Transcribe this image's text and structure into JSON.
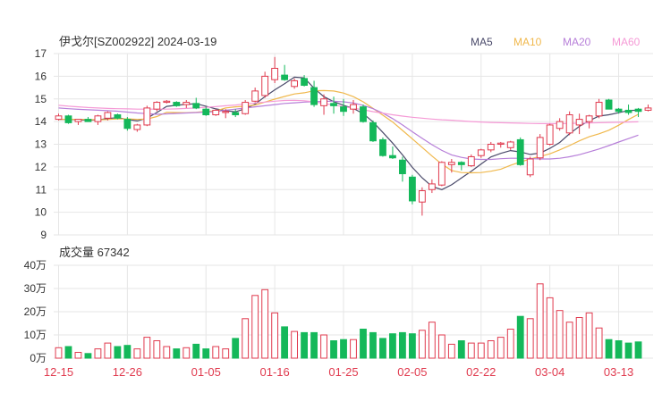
{
  "header": {
    "title": "伊戈尔[SZ002922] 2024-03-19",
    "ma_legend": [
      {
        "label": "MA5",
        "color": "#4a4a6a"
      },
      {
        "label": "MA10",
        "color": "#f0b84c"
      },
      {
        "label": "MA20",
        "color": "#b77fd9"
      },
      {
        "label": "MA60",
        "color": "#f59ad6"
      }
    ]
  },
  "volume_header": {
    "label": "成交量 67342"
  },
  "colors": {
    "up": "#e03a4e",
    "down": "#14b85a",
    "grid": "#e6e6e6",
    "axis_text": "#333333"
  },
  "chart_data": [
    {
      "type": "candlestick",
      "title": "伊戈尔[SZ002922] 2024-03-19",
      "ylim": [
        9,
        17
      ],
      "yticks": [
        "9",
        "10",
        "11",
        "12",
        "13",
        "14",
        "15",
        "16",
        "17"
      ],
      "xticks": [
        {
          "label": "12-15",
          "index": 0
        },
        {
          "label": "12-26",
          "index": 7
        },
        {
          "label": "01-05",
          "index": 15
        },
        {
          "label": "01-16",
          "index": 22
        },
        {
          "label": "01-25",
          "index": 29
        },
        {
          "label": "02-05",
          "index": 36
        },
        {
          "label": "02-22",
          "index": 43
        },
        {
          "label": "03-04",
          "index": 50
        },
        {
          "label": "03-13",
          "index": 57
        }
      ],
      "ohlc": [
        [
          14.1,
          14.35,
          14.05,
          14.25
        ],
        [
          14.25,
          14.3,
          13.9,
          13.95
        ],
        [
          14.0,
          14.1,
          13.85,
          14.1
        ],
        [
          14.1,
          14.2,
          14.0,
          14.0
        ],
        [
          14.0,
          14.3,
          13.85,
          14.25
        ],
        [
          14.15,
          14.45,
          14.05,
          14.4
        ],
        [
          14.3,
          14.35,
          14.1,
          14.15
        ],
        [
          14.1,
          14.2,
          13.6,
          13.7
        ],
        [
          13.65,
          13.9,
          13.55,
          13.85
        ],
        [
          13.85,
          14.7,
          13.8,
          14.6
        ],
        [
          14.55,
          14.9,
          14.45,
          14.85
        ],
        [
          14.85,
          14.95,
          14.8,
          14.9
        ],
        [
          14.85,
          14.9,
          14.65,
          14.7
        ],
        [
          14.75,
          14.95,
          14.6,
          14.85
        ],
        [
          14.8,
          15.05,
          14.55,
          14.6
        ],
        [
          14.55,
          14.65,
          14.25,
          14.3
        ],
        [
          14.3,
          14.55,
          14.25,
          14.5
        ],
        [
          14.4,
          14.55,
          14.15,
          14.45
        ],
        [
          14.4,
          14.55,
          14.2,
          14.3
        ],
        [
          14.35,
          14.95,
          14.3,
          14.85
        ],
        [
          14.9,
          15.5,
          14.85,
          15.35
        ],
        [
          15.15,
          16.2,
          15.05,
          16.0
        ],
        [
          15.85,
          16.85,
          15.7,
          16.35
        ],
        [
          16.05,
          16.5,
          15.8,
          15.85
        ],
        [
          15.55,
          15.9,
          15.45,
          15.8
        ],
        [
          15.9,
          16.05,
          15.55,
          15.6
        ],
        [
          15.5,
          15.8,
          14.65,
          14.75
        ],
        [
          14.7,
          15.2,
          14.3,
          15.0
        ],
        [
          14.8,
          15.1,
          14.35,
          14.7
        ],
        [
          14.65,
          15.0,
          14.25,
          14.45
        ],
        [
          14.55,
          14.95,
          14.35,
          14.75
        ],
        [
          14.65,
          14.75,
          13.95,
          14.0
        ],
        [
          13.95,
          14.05,
          13.1,
          13.15
        ],
        [
          13.2,
          13.3,
          12.45,
          12.5
        ],
        [
          12.5,
          12.9,
          12.35,
          12.4
        ],
        [
          12.3,
          12.45,
          11.35,
          11.7
        ],
        [
          11.55,
          11.65,
          10.35,
          10.5
        ],
        [
          10.45,
          11.1,
          9.85,
          10.95
        ],
        [
          11.0,
          11.45,
          10.85,
          11.25
        ],
        [
          11.2,
          12.25,
          11.15,
          12.2
        ],
        [
          12.1,
          12.35,
          11.75,
          12.2
        ],
        [
          12.2,
          12.25,
          11.85,
          12.1
        ],
        [
          12.05,
          12.55,
          12.0,
          12.45
        ],
        [
          12.5,
          12.8,
          12.4,
          12.75
        ],
        [
          12.75,
          13.1,
          12.65,
          13.0
        ],
        [
          13.0,
          13.1,
          12.85,
          13.05
        ],
        [
          12.85,
          13.15,
          12.75,
          13.1
        ],
        [
          13.2,
          13.3,
          12.05,
          12.1
        ],
        [
          11.65,
          12.45,
          11.55,
          12.35
        ],
        [
          12.4,
          13.45,
          12.3,
          13.3
        ],
        [
          13.0,
          13.9,
          12.95,
          13.85
        ],
        [
          13.7,
          14.15,
          13.6,
          14.0
        ],
        [
          13.5,
          14.45,
          13.4,
          14.3
        ],
        [
          13.85,
          14.35,
          13.45,
          14.1
        ],
        [
          14.0,
          14.3,
          13.7,
          14.25
        ],
        [
          14.25,
          15.0,
          14.15,
          14.85
        ],
        [
          14.95,
          15.0,
          14.55,
          14.55
        ],
        [
          14.55,
          14.6,
          14.35,
          14.45
        ],
        [
          14.5,
          14.75,
          14.3,
          14.4
        ],
        [
          14.55,
          14.6,
          14.2,
          14.45
        ],
        [
          14.5,
          14.75,
          14.45,
          14.6
        ]
      ],
      "volume": {
        "ylim": [
          0,
          40
        ],
        "yticks": [
          "0万",
          "10万",
          "20万",
          "30万",
          "40万"
        ],
        "unit": "万",
        "values": [
          4.5,
          5,
          2.5,
          2,
          4,
          6.5,
          5,
          5.5,
          4,
          9,
          7.5,
          5,
          4,
          4.5,
          6,
          4,
          5,
          4,
          8.5,
          17,
          27,
          29.5,
          19.5,
          13.5,
          11.5,
          11,
          11,
          10,
          7.5,
          8,
          8,
          12.5,
          11,
          8.5,
          10.5,
          11,
          10.5,
          12,
          15.5,
          10,
          6,
          7.5,
          6.5,
          6.5,
          7.5,
          9,
          12.5,
          18,
          17,
          32,
          26,
          20.5,
          15.5,
          17.5,
          19.5,
          13,
          8,
          7.5,
          6.5,
          7
        ]
      },
      "ma_series": [
        {
          "name": "MA5",
          "values": [
            14.1,
            14.1,
            14.08,
            14.06,
            14.07,
            14.14,
            14.17,
            14.1,
            14.03,
            14.15,
            14.4,
            14.67,
            14.72,
            14.76,
            14.79,
            14.68,
            14.56,
            14.48,
            14.43,
            14.57,
            14.77,
            15.1,
            15.4,
            15.67,
            15.96,
            15.93,
            15.47,
            15.1,
            14.88,
            14.72,
            14.58,
            14.35,
            13.98,
            13.52,
            13.05,
            12.53,
            11.98,
            11.52,
            11.14,
            11.0,
            11.21,
            11.51,
            11.81,
            12.13,
            12.44,
            12.6,
            12.72,
            12.66,
            12.55,
            12.61,
            12.82,
            13.08,
            13.46,
            13.79,
            14.04,
            14.24,
            14.3,
            14.39,
            14.49,
            14.5
          ]
        },
        {
          "name": "MA10",
          "values": [
            14.1,
            14.1,
            14.1,
            14.09,
            14.08,
            14.09,
            14.12,
            14.12,
            14.1,
            14.11,
            14.22,
            14.41,
            14.4,
            14.39,
            14.41,
            14.45,
            14.47,
            14.6,
            14.65,
            14.68,
            14.73,
            14.86,
            14.99,
            15.11,
            15.22,
            15.27,
            15.36,
            15.37,
            15.35,
            15.26,
            15.1,
            14.87,
            14.58,
            14.28,
            13.98,
            13.61,
            13.24,
            12.86,
            12.48,
            12.12,
            11.84,
            11.75,
            11.74,
            11.75,
            11.81,
            11.9,
            12.07,
            12.22,
            12.35,
            12.46,
            12.58,
            12.75,
            12.94,
            13.15,
            13.33,
            13.46,
            13.62,
            13.84,
            14.09,
            14.32
          ]
        },
        {
          "name": "MA20",
          "values": [
            14.6,
            14.57,
            14.54,
            14.52,
            14.5,
            14.48,
            14.46,
            14.42,
            14.38,
            14.35,
            14.32,
            14.34,
            14.36,
            14.38,
            14.4,
            14.42,
            14.44,
            14.5,
            14.55,
            14.6,
            14.65,
            14.7,
            14.75,
            14.8,
            14.83,
            14.86,
            14.88,
            14.89,
            14.9,
            14.87,
            14.82,
            14.72,
            14.57,
            14.37,
            14.13,
            13.85,
            13.55,
            13.26,
            12.98,
            12.73,
            12.53,
            12.42,
            12.35,
            12.33,
            12.33,
            12.36,
            12.38,
            12.38,
            12.37,
            12.35,
            12.35,
            12.38,
            12.45,
            12.54,
            12.66,
            12.79,
            12.94,
            13.1,
            13.25,
            13.4
          ]
        },
        {
          "name": "MA60",
          "values": [
            14.72,
            14.68,
            14.65,
            14.62,
            14.6,
            14.58,
            14.57,
            14.56,
            14.55,
            14.55,
            14.55,
            14.55,
            14.56,
            14.58,
            14.6,
            14.63,
            14.66,
            14.7,
            14.73,
            14.78,
            14.82,
            14.86,
            14.9,
            14.93,
            14.94,
            14.92,
            14.87,
            14.8,
            14.73,
            14.66,
            14.59,
            14.52,
            14.44,
            14.37,
            14.3,
            14.24,
            14.19,
            14.15,
            14.11,
            14.08,
            14.06,
            14.03,
            14.0,
            13.98,
            13.96,
            13.95,
            13.94,
            13.93,
            13.92,
            13.91,
            13.91,
            13.91,
            13.92,
            13.93,
            13.94,
            13.95,
            13.96,
            13.97,
            13.98,
            13.99
          ]
        }
      ]
    }
  ]
}
